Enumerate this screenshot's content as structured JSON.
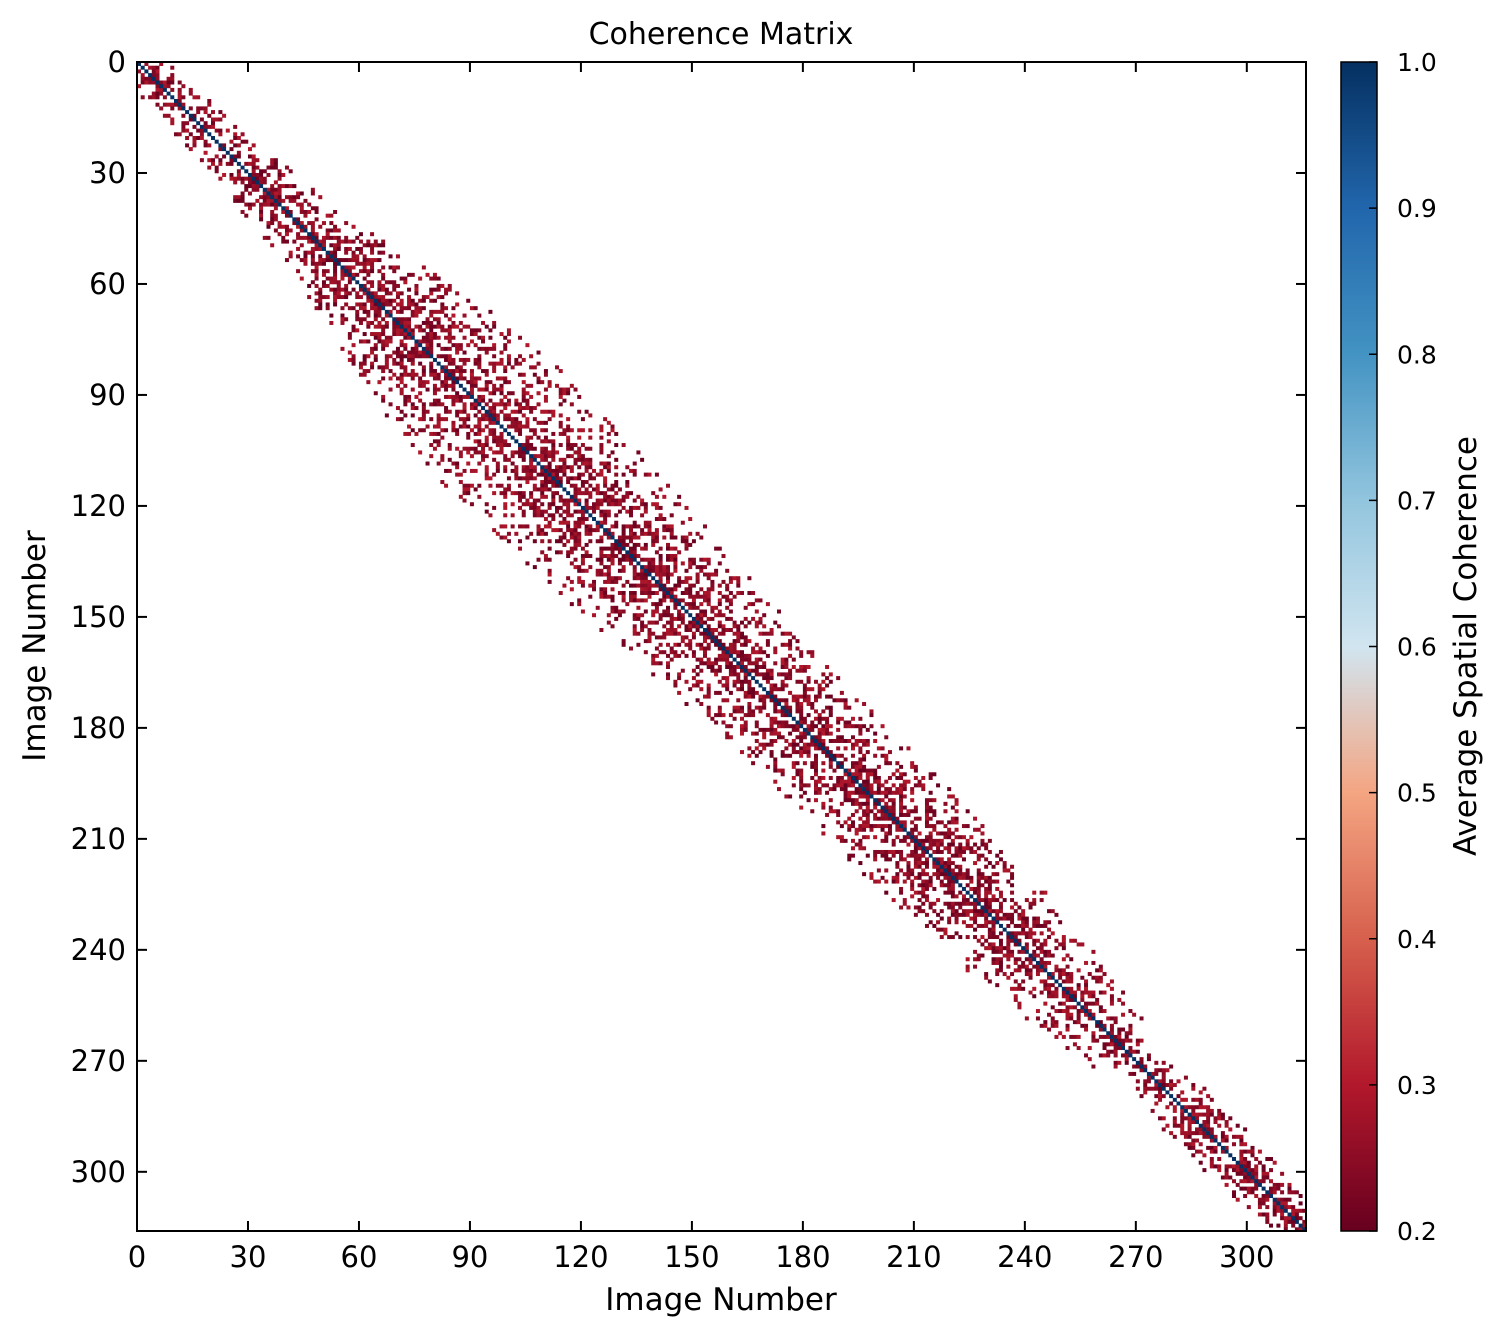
{
  "chart_data": {
    "type": "heatmap",
    "title": "Coherence Matrix",
    "xlabel": "Image Number",
    "ylabel": "Image Number",
    "matrix_size": 316,
    "xlim": [
      0,
      316
    ],
    "ylim": [
      316,
      0
    ],
    "x_ticks": [
      0,
      30,
      60,
      90,
      120,
      150,
      180,
      210,
      240,
      270,
      300
    ],
    "y_ticks": [
      0,
      30,
      60,
      90,
      120,
      150,
      180,
      210,
      240,
      270,
      300
    ],
    "colorbar": {
      "label": "Average Spatial Coherence",
      "range": [
        0.2,
        1.0
      ],
      "ticks": [
        "0.2",
        "0.3",
        "0.4",
        "0.5",
        "0.6",
        "0.7",
        "0.8",
        "0.9",
        "1.0"
      ],
      "colormap": "RdBu",
      "colors": [
        "#67001f",
        "#b2182b",
        "#d6604d",
        "#f4a582",
        "#d1e5f0",
        "#92c5de",
        "#4393c3",
        "#2166ac",
        "#053061"
      ],
      "note_threshold": 0.7
    },
    "diagonal_value": 1.0,
    "off_diagonal_value_range": [
      0.2,
      0.3
    ],
    "band_halfwidth_profile": [
      {
        "image": 0,
        "halfwidth": 8
      },
      {
        "image": 40,
        "halfwidth": 14
      },
      {
        "image": 60,
        "halfwidth": 26
      },
      {
        "image": 80,
        "halfwidth": 32
      },
      {
        "image": 110,
        "halfwidth": 30
      },
      {
        "image": 140,
        "halfwidth": 26
      },
      {
        "image": 180,
        "halfwidth": 24
      },
      {
        "image": 220,
        "halfwidth": 22
      },
      {
        "image": 255,
        "halfwidth": 16
      },
      {
        "image": 266,
        "halfwidth": 5
      },
      {
        "image": 280,
        "halfwidth": 14
      },
      {
        "image": 300,
        "halfwidth": 10
      },
      {
        "image": 315,
        "halfwidth": 6
      }
    ],
    "grid": false
  }
}
